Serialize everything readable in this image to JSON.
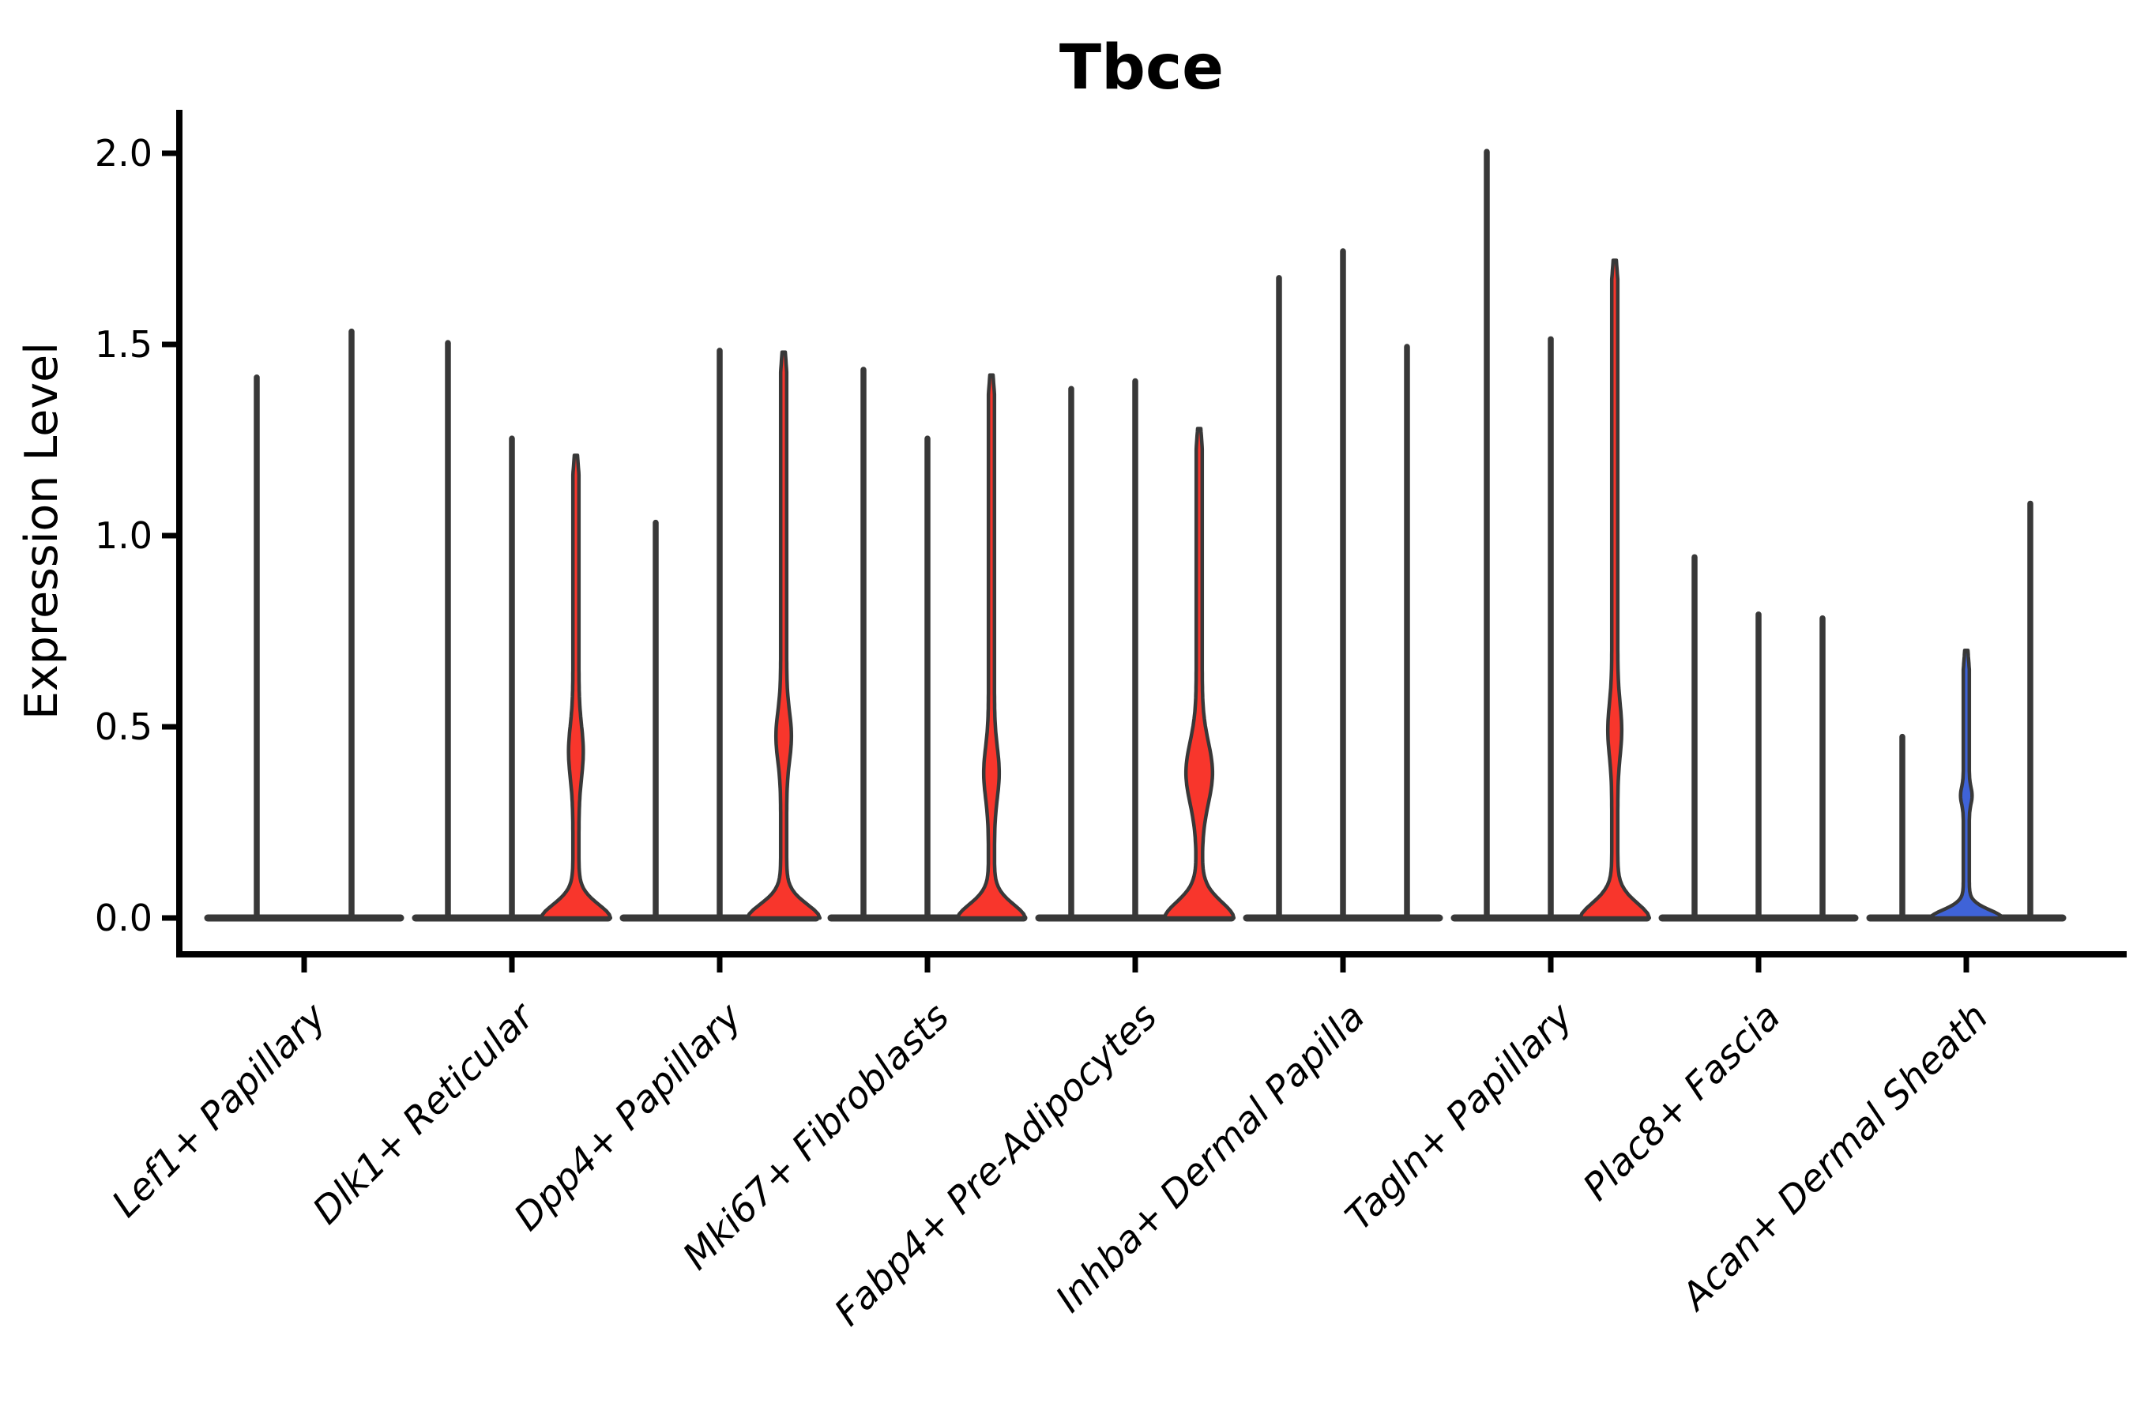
{
  "title": "Tbce",
  "axes": {
    "ylabel": "Expression Level",
    "ytick_labels": [
      "0.0",
      "0.5",
      "1.0",
      "1.5",
      "2.0"
    ]
  },
  "chart_data": {
    "type": "violin",
    "title": "Tbce",
    "xlabel": "",
    "ylabel": "Expression Level",
    "ylim": [
      -0.09,
      2.12
    ],
    "ytick_values": [
      0.0,
      0.5,
      1.0,
      1.5,
      2.0
    ],
    "grid": false,
    "legend": "none",
    "palette": {
      "highlight_red": "#f8362c",
      "highlight_blue": "#3f63d8",
      "outline": "#383838",
      "baseline": "#383838",
      "text": "#000000"
    },
    "categories": [
      "Lef1+ Papillary",
      "Dlk1+ Reticular",
      "Dpp4+ Papillary",
      "Mki67+ Fibroblasts",
      "Fabp4+ Pre-Adipocytes",
      "Inhba+ Dermal Papilla",
      "Tagln+ Papillary",
      "Plac8+ Fascia",
      "Acan+ Dermal Sheath"
    ],
    "groups": [
      {
        "category": "Lef1+ Papillary",
        "violins": [
          {
            "offset": -60,
            "max": 1.42,
            "fill": "none"
          },
          {
            "offset": 60,
            "max": 1.54,
            "fill": "none"
          }
        ]
      },
      {
        "category": "Dlk1+ Reticular",
        "violins": [
          {
            "offset": -81,
            "max": 1.51,
            "fill": "none"
          },
          {
            "offset": 0,
            "max": 1.26,
            "fill": "none"
          },
          {
            "offset": 81,
            "max": 1.21,
            "fill": "red",
            "base_top": 0.12,
            "base_hw": 40,
            "bulge": {
              "lo": 0.28,
              "hi": 0.59,
              "hw": 5.5
            }
          }
        ]
      },
      {
        "category": "Dpp4+ Papillary",
        "violins": [
          {
            "offset": -81,
            "max": 1.04,
            "fill": "none"
          },
          {
            "offset": 0,
            "max": 1.49,
            "fill": "none"
          },
          {
            "offset": 81,
            "max": 1.48,
            "fill": "red",
            "base_top": 0.12,
            "base_hw": 42,
            "bulge": {
              "lo": 0.33,
              "hi": 0.62,
              "hw": 6
            }
          }
        ]
      },
      {
        "category": "Mki67+ Fibroblasts",
        "violins": [
          {
            "offset": -81,
            "max": 1.44,
            "fill": "none"
          },
          {
            "offset": 0,
            "max": 1.26,
            "fill": "none"
          },
          {
            "offset": 81,
            "max": 1.42,
            "fill": "red",
            "base_top": 0.12,
            "base_hw": 39,
            "bulge": {
              "lo": 0.23,
              "hi": 0.53,
              "hw": 6
            }
          }
        ]
      },
      {
        "category": "Fabp4+ Pre-Adipocytes",
        "violins": [
          {
            "offset": -81,
            "max": 1.39,
            "fill": "none"
          },
          {
            "offset": 0,
            "max": 1.41,
            "fill": "none"
          },
          {
            "offset": 81,
            "max": 1.28,
            "fill": "red",
            "base_top": 0.14,
            "base_hw": 40,
            "bulge": {
              "lo": 0.2,
              "hi": 0.56,
              "hw": 13
            }
          }
        ]
      },
      {
        "category": "Inhba+ Dermal Papilla",
        "violins": [
          {
            "offset": -81,
            "max": 1.68,
            "fill": "none"
          },
          {
            "offset": 0,
            "max": 1.75,
            "fill": "none"
          },
          {
            "offset": 81,
            "max": 1.5,
            "fill": "none"
          }
        ]
      },
      {
        "category": "Tagln+ Papillary",
        "violins": [
          {
            "offset": -81,
            "max": 2.01,
            "fill": "none"
          },
          {
            "offset": 0,
            "max": 1.52,
            "fill": "none"
          },
          {
            "offset": 81,
            "max": 1.72,
            "fill": "red",
            "base_top": 0.13,
            "base_hw": 40,
            "bulge": {
              "lo": 0.34,
              "hi": 0.645,
              "hw": 5
            }
          }
        ]
      },
      {
        "category": "Plac8+ Fascia",
        "violins": [
          {
            "offset": -81,
            "max": 0.95,
            "fill": "none"
          },
          {
            "offset": 0,
            "max": 0.8,
            "fill": "none"
          },
          {
            "offset": 81,
            "max": 0.79,
            "fill": "none"
          }
        ]
      },
      {
        "category": "Acan+ Dermal Sheath",
        "violins": [
          {
            "offset": -81,
            "max": 0.48,
            "fill": "none"
          },
          {
            "offset": 0,
            "max": 0.7,
            "fill": "blue",
            "base_top": 0.07,
            "base_hw": 42,
            "bulge": {
              "lo": 0.27,
              "hi": 0.37,
              "hw": 3.5
            }
          },
          {
            "offset": 81,
            "max": 1.09,
            "fill": "none"
          }
        ]
      }
    ]
  }
}
